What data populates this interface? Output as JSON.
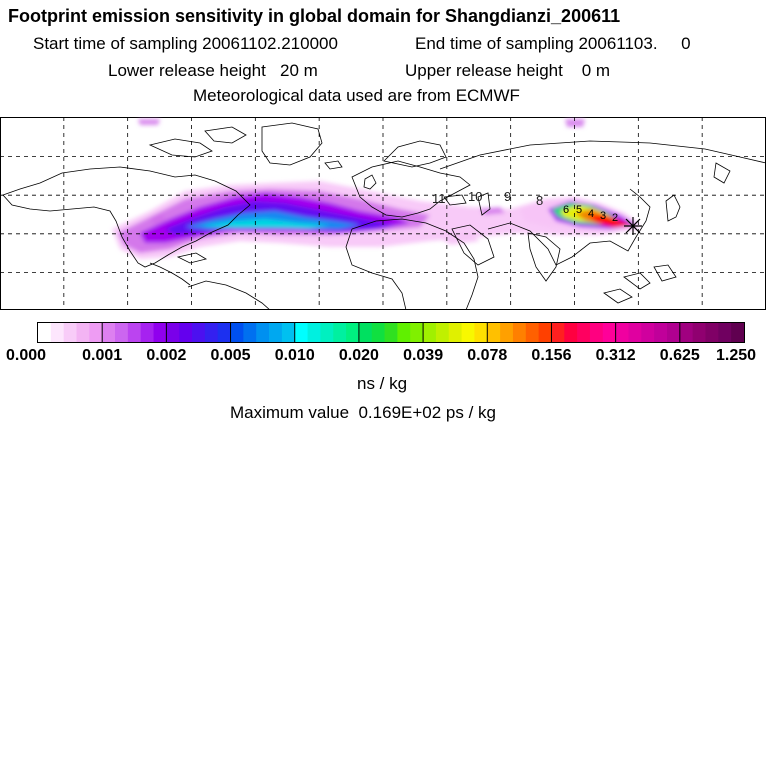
{
  "header": {
    "title": "Footprint emission sensitivity in global domain for Shangdianzi_200611",
    "start": "Start time of sampling 20061102.210000",
    "end": "End time of sampling 20061103.     0",
    "lower": "Lower release height   20 m",
    "upper": "Upper release height    0 m",
    "met": "Meteorological data used are from ECMWF"
  },
  "map": {
    "day_labels": [
      "11",
      "10",
      "9",
      "8",
      "6",
      "5",
      "4",
      "3",
      "2"
    ],
    "plume_colors": [
      "#f7c4f7",
      "#d070ea",
      "#a000ee",
      "#6010f0",
      "#1090f0",
      "#00e0e0",
      "#00e080",
      "#f0f000",
      "#f08000",
      "#ff0000"
    ]
  },
  "colorbar": {
    "tick_labels": [
      "0.000",
      "0.001",
      "0.002",
      "0.005",
      "0.010",
      "0.020",
      "0.039",
      "0.078",
      "0.156",
      "0.312",
      "0.625",
      "1.250"
    ],
    "colors": [
      "#ffffff",
      "#fde6fd",
      "#f8ccf8",
      "#f3b4f3",
      "#ee9cf3",
      "#dd80f0",
      "#cc66f0",
      "#bb44f0",
      "#a622f0",
      "#9000ee",
      "#7a00ea",
      "#6400ee",
      "#4c10f0",
      "#3420f0",
      "#1c30f0",
      "#0050f0",
      "#0070f0",
      "#0090f0",
      "#00a8f0",
      "#00c0f0",
      "#00ffff",
      "#00f0e0",
      "#00f0c0",
      "#00f0a0",
      "#00f080",
      "#00e060",
      "#10e040",
      "#30e020",
      "#60f000",
      "#80f000",
      "#a0f000",
      "#c0f000",
      "#e0f000",
      "#f8f800",
      "#ffe000",
      "#ffc000",
      "#ffa000",
      "#ff8000",
      "#ff6000",
      "#ff4000",
      "#ff2020",
      "#ff0040",
      "#ff0060",
      "#ff0080",
      "#ff0099",
      "#f000a0",
      "#e000a0",
      "#d0009e",
      "#c0009a",
      "#b00090",
      "#a00080",
      "#900070",
      "#800066",
      "#700060",
      "#600050"
    ],
    "unit": "ns / kg",
    "max_value": "Maximum value  0.169E+02 ps / kg"
  }
}
